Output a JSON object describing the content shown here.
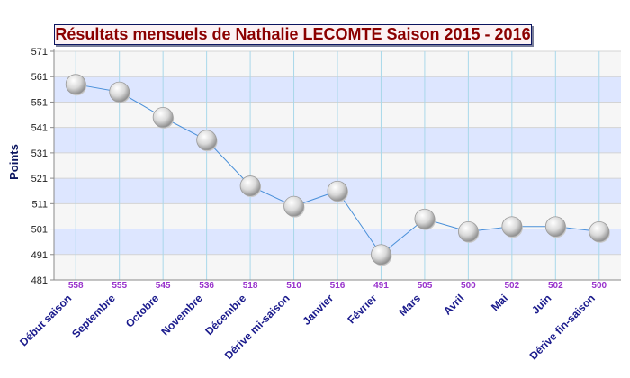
{
  "chart_data": {
    "type": "line",
    "title": "Résultats mensuels de Nathalie LECOMTE Saison 2015 - 2016",
    "ylabel": "Points",
    "xlabel": "",
    "ylim": [
      481,
      571
    ],
    "y_ticks": [
      481,
      491,
      501,
      511,
      521,
      531,
      541,
      551,
      561,
      571
    ],
    "grid": true,
    "legend": "none",
    "categories": [
      "Début saison",
      "Septembre",
      "Octobre",
      "Novembre",
      "Décembre",
      "Dérive mi-saison",
      "Janvier",
      "Février",
      "Mars",
      "Avril",
      "Mai",
      "Juin",
      "Dérive fin-saison"
    ],
    "series": [
      {
        "values": [
          558,
          555,
          545,
          536,
          518,
          510,
          516,
          491,
          505,
          500,
          502,
          502,
          500
        ],
        "data_labels": [
          "558",
          "555",
          "545",
          "536",
          "518",
          "510",
          "516",
          "491",
          "505",
          "500",
          "502",
          "502",
          "500"
        ]
      }
    ],
    "colors": {
      "band": "#dde6ff",
      "band_alt": "#f6f6f6",
      "vgrid": "#a9d8ea",
      "line": "#4a90d9",
      "data_label": "#9933cc",
      "category_label": "#1a1a8c",
      "axis_title": "#0b1560",
      "title_text": "#8b0000"
    }
  }
}
